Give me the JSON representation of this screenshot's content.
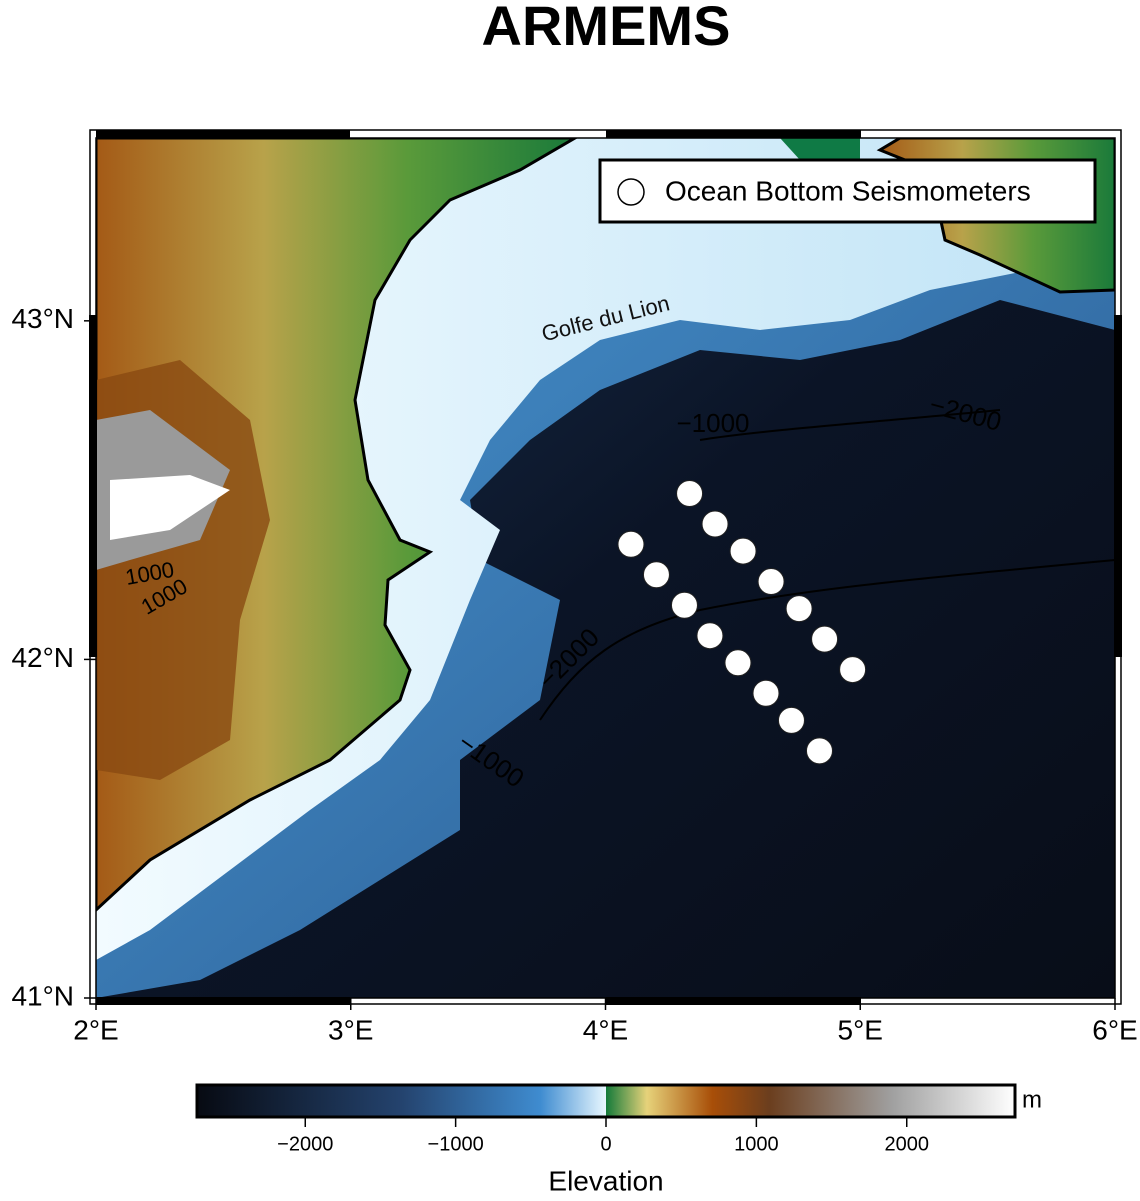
{
  "map": {
    "title": "ARMEMS",
    "xlim": [
      2,
      6
    ],
    "ylim": [
      41,
      43.54
    ],
    "xticks": [
      {
        "value": 2,
        "label": "2°E"
      },
      {
        "value": 3,
        "label": "3°E"
      },
      {
        "value": 4,
        "label": "4°E"
      },
      {
        "value": 5,
        "label": "5°E"
      },
      {
        "value": 6,
        "label": "6°E"
      }
    ],
    "yticks": [
      {
        "value": 41,
        "label": "41°N"
      },
      {
        "value": 42,
        "label": "42°N"
      },
      {
        "value": 43,
        "label": "43°N"
      }
    ],
    "stations": {
      "name": "Ocean Bottom Seismometers",
      "lon": [
        4.33,
        4.43,
        4.54,
        4.65,
        4.76,
        4.86,
        4.97,
        4.1,
        4.2,
        4.31,
        4.41,
        4.52,
        4.63,
        4.73,
        4.84
      ],
      "lat": [
        42.49,
        42.4,
        42.32,
        42.23,
        42.15,
        42.06,
        41.97,
        42.34,
        42.25,
        42.16,
        42.07,
        41.99,
        41.9,
        41.82,
        41.73
      ]
    },
    "annotations": [
      "Golfe du Lion",
      "−1000",
      "−2000",
      "−2000",
      "−1000",
      "1000",
      "1000"
    ],
    "colorbar": {
      "label": "Elevation",
      "unit": "m",
      "lim": [
        -2720,
        2720
      ],
      "ticks": [
        {
          "value": -2000,
          "label": "−2000"
        },
        {
          "value": -1000,
          "label": "−1000"
        },
        0,
        1000,
        2000
      ]
    }
  }
}
